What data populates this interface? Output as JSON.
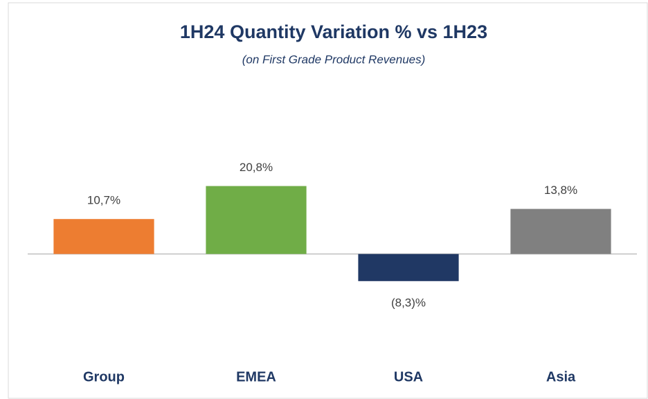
{
  "chart_data": {
    "type": "bar",
    "title": "1H24 Quantity Variation % vs 1H23",
    "subtitle": "(on First Grade Product Revenues)",
    "categories": [
      "Group",
      "EMEA",
      "USA",
      "Asia"
    ],
    "values": [
      10.7,
      20.8,
      -8.3,
      13.8
    ],
    "value_labels": [
      "10,7%",
      "20,8%",
      "(8,3)%",
      "13,8%"
    ],
    "colors": [
      "#ed7d31",
      "#70ad47",
      "#203864",
      "#808080"
    ],
    "ylim": [
      -20,
      40
    ]
  }
}
